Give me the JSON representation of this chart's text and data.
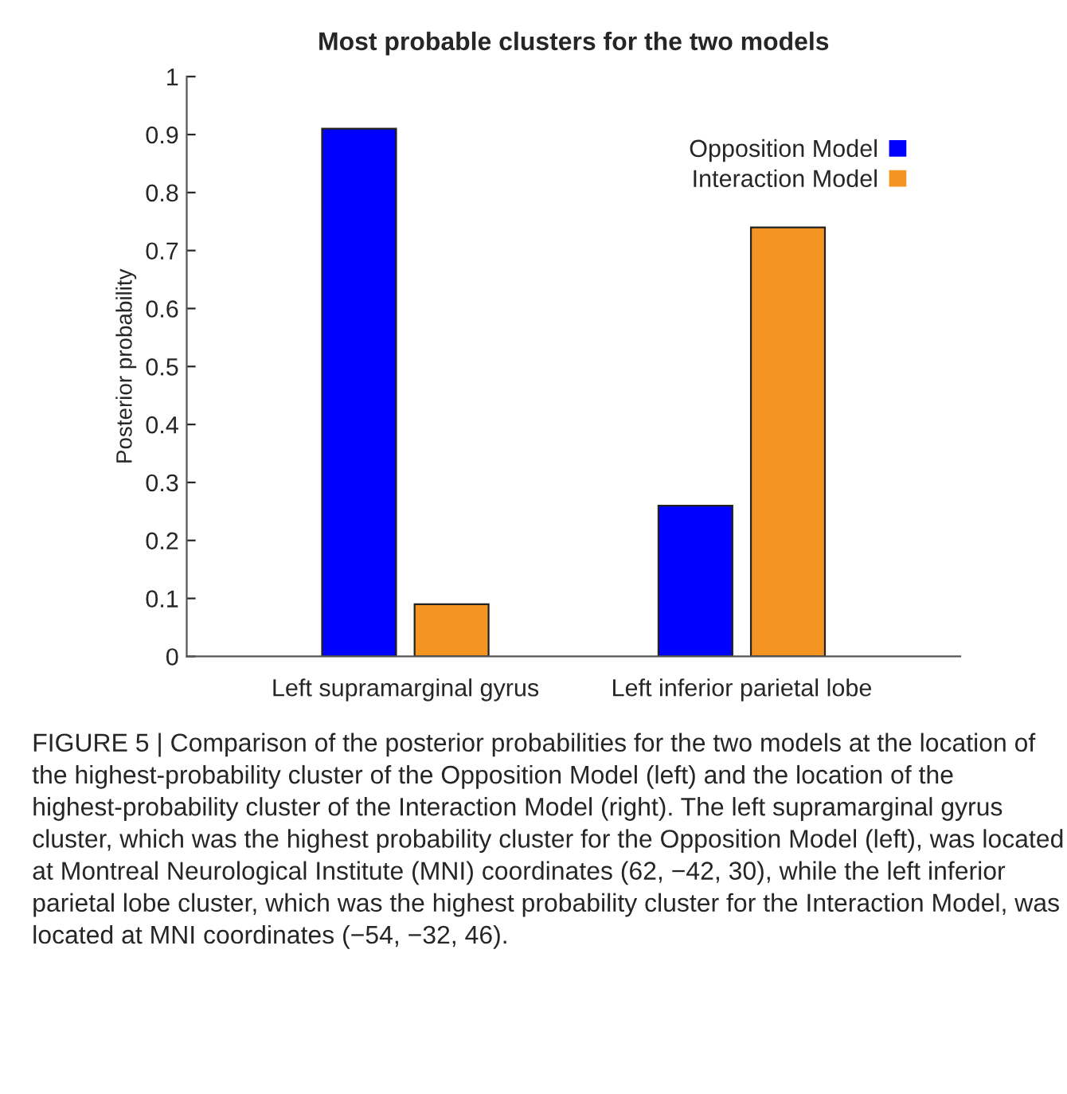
{
  "chart_data": {
    "type": "bar",
    "title": "Most probable clusters for the two models",
    "ylabel": "Posterior probability",
    "categories": [
      "Left supramarginal gyrus",
      "Left inferior parietal lobe"
    ],
    "series": [
      {
        "name": "Opposition Model",
        "color": "#0000ff",
        "values": [
          0.91,
          0.26
        ]
      },
      {
        "name": "Interaction Model",
        "color": "#f39423",
        "values": [
          0.09,
          0.74
        ]
      }
    ],
    "ylim": [
      0,
      1
    ],
    "yticks": [
      0,
      0.1,
      0.2,
      0.3,
      0.4,
      0.5,
      0.6,
      0.7,
      0.8,
      0.9,
      1
    ],
    "grid": false,
    "legend": "top right",
    "annotations": [
      "FIGURE 5 | Comparison of the posterior probabilities for the two models at the location of the highest-probability cluster of the Opposition Model (left) and the location of the highest-probability cluster of the Interaction Model (right). The left supramarginal gyrus cluster, which was the highest probability cluster for the Opposition Model (left), was located at Montreal Neurological Institute (MNI) coordinates (62, −42, 30), while the left inferior parietal lobe cluster, which was the highest probability cluster for the Interaction Model, was located at MNI coordinates (−54, −32, 46)."
    ]
  }
}
